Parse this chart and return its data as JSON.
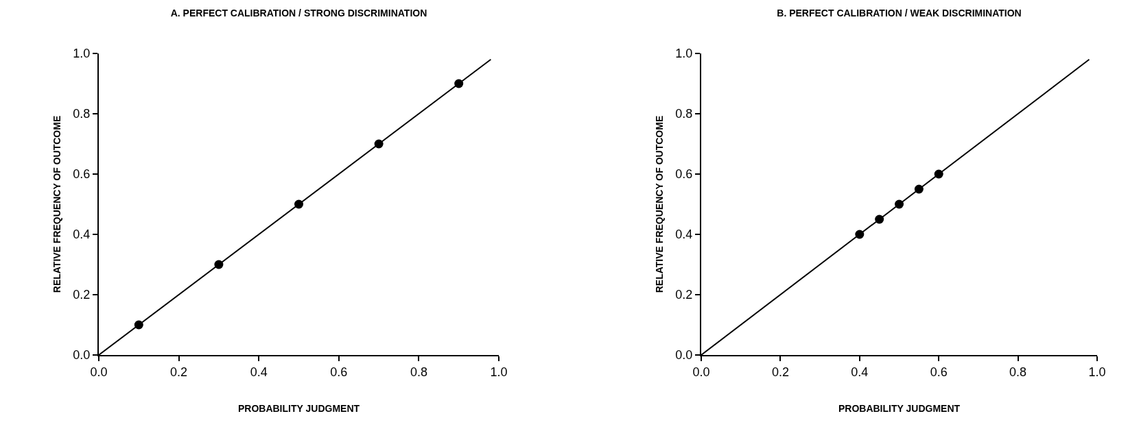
{
  "chart_data": [
    {
      "type": "scatter",
      "title": "A. PERFECT CALIBRATION / STRONG DISCRIMINATION",
      "xlabel": "PROBABILITY JUDGMENT",
      "ylabel": "RELATIVE FREQUENCY OF OUTCOME",
      "xlim": [
        0,
        1
      ],
      "ylim": [
        0,
        1
      ],
      "xticks": [
        {
          "value": 0,
          "label": "0.0"
        },
        {
          "value": 0.2,
          "label": "0.2"
        },
        {
          "value": 0.4,
          "label": "0.4"
        },
        {
          "value": 0.6,
          "label": "0.6"
        },
        {
          "value": 0.8,
          "label": "0.8"
        },
        {
          "value": 1,
          "label": "1.0"
        }
      ],
      "yticks": [
        {
          "value": 0,
          "label": "0.0"
        },
        {
          "value": 0.2,
          "label": "0.2"
        },
        {
          "value": 0.4,
          "label": "0.4"
        },
        {
          "value": 0.6,
          "label": "0.6"
        },
        {
          "value": 0.8,
          "label": "0.8"
        },
        {
          "value": 1,
          "label": "1.0"
        }
      ],
      "series": [
        {
          "type": "line",
          "color": "#000000",
          "x": [
            0,
            0.98
          ],
          "values": [
            0,
            0.98
          ],
          "marker": "none",
          "line_style": "solid"
        },
        {
          "color": "#000000",
          "x": [
            0.1,
            0.3,
            0.5,
            0.7,
            0.9
          ],
          "values": [
            0.1,
            0.3,
            0.5,
            0.7,
            0.9
          ],
          "marker": "circle"
        }
      ]
    },
    {
      "type": "scatter",
      "title": "B. PERFECT CALIBRATION / WEAK DISCRIMINATION",
      "xlabel": "PROBABILITY JUDGMENT",
      "ylabel": "RELATIVE FREQUENCY OF OUTCOME",
      "xlim": [
        0,
        1
      ],
      "ylim": [
        0,
        1
      ],
      "xticks": [
        {
          "value": 0,
          "label": "0.0"
        },
        {
          "value": 0.2,
          "label": "0.2"
        },
        {
          "value": 0.4,
          "label": "0.4"
        },
        {
          "value": 0.6,
          "label": "0.6"
        },
        {
          "value": 0.8,
          "label": "0.8"
        },
        {
          "value": 1,
          "label": "1.0"
        }
      ],
      "yticks": [
        {
          "value": 0,
          "label": "0.0"
        },
        {
          "value": 0.2,
          "label": "0.2"
        },
        {
          "value": 0.4,
          "label": "0.4"
        },
        {
          "value": 0.6,
          "label": "0.6"
        },
        {
          "value": 0.8,
          "label": "0.8"
        },
        {
          "value": 1,
          "label": "1.0"
        }
      ],
      "series": [
        {
          "type": "line",
          "color": "#000000",
          "x": [
            0,
            0.98
          ],
          "values": [
            0,
            0.98
          ],
          "marker": "none",
          "line_style": "solid"
        },
        {
          "color": "#000000",
          "x": [
            0.4,
            0.45,
            0.5,
            0.55,
            0.6
          ],
          "values": [
            0.4,
            0.45,
            0.5,
            0.55,
            0.6
          ],
          "marker": "circle"
        }
      ]
    }
  ]
}
